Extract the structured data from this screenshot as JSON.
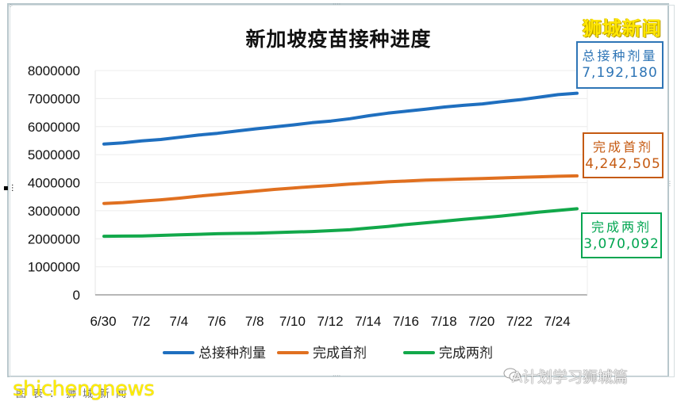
{
  "brand": {
    "name": "狮城新闻"
  },
  "watermarks": {
    "site": "shichengnews",
    "caption": "图表：狮城新闻",
    "wechat_account": "A计划学习狮城篇",
    "wechat_icon": "wechat-icon"
  },
  "callouts": [
    {
      "label": "总接种剂量",
      "value": "7,192,180",
      "color": "#2e75b6"
    },
    {
      "label": "完成首剂",
      "value": "4,242,505",
      "color": "#c55a11"
    },
    {
      "label": "完成两剂",
      "value": "3,070,092",
      "color": "#00a550"
    }
  ],
  "chart_data": {
    "type": "line",
    "title": "新加坡疫苗接种进度",
    "xlabel": "",
    "ylabel": "",
    "ylim": [
      0,
      8000000
    ],
    "yticks": [
      0,
      1000000,
      2000000,
      3000000,
      4000000,
      5000000,
      6000000,
      7000000,
      8000000
    ],
    "ytick_labels": [
      "0",
      "1000000",
      "2000000",
      "3000000",
      "4000000",
      "5000000",
      "6000000",
      "7000000",
      "8000000"
    ],
    "xtick_labels": [
      "6/30",
      "7/2",
      "7/4",
      "7/6",
      "7/8",
      "7/10",
      "7/12",
      "7/14",
      "7/16",
      "7/18",
      "7/20",
      "7/22",
      "7/24"
    ],
    "x": [
      "6/30",
      "7/1",
      "7/2",
      "7/3",
      "7/4",
      "7/5",
      "7/6",
      "7/7",
      "7/8",
      "7/9",
      "7/10",
      "7/11",
      "7/12",
      "7/13",
      "7/14",
      "7/15",
      "7/16",
      "7/17",
      "7/18",
      "7/19",
      "7/20",
      "7/21",
      "7/22",
      "7/23",
      "7/24",
      "7/25"
    ],
    "grid": true,
    "legend_position": "bottom",
    "series": [
      {
        "name": "总接种剂量",
        "color": "#1f6fbf",
        "values": [
          5380000,
          5420000,
          5490000,
          5540000,
          5620000,
          5700000,
          5760000,
          5840000,
          5920000,
          5990000,
          6060000,
          6140000,
          6200000,
          6280000,
          6390000,
          6480000,
          6550000,
          6620000,
          6700000,
          6760000,
          6810000,
          6890000,
          6960000,
          7050000,
          7140000,
          7192180
        ]
      },
      {
        "name": "完成首剂",
        "color": "#e07020",
        "values": [
          3260000,
          3290000,
          3340000,
          3390000,
          3450000,
          3520000,
          3580000,
          3640000,
          3700000,
          3760000,
          3810000,
          3860000,
          3900000,
          3950000,
          3990000,
          4030000,
          4060000,
          4090000,
          4110000,
          4130000,
          4150000,
          4170000,
          4190000,
          4210000,
          4230000,
          4242505
        ]
      },
      {
        "name": "完成两剂",
        "color": "#12a84a",
        "values": [
          2090000,
          2095000,
          2100000,
          2120000,
          2140000,
          2160000,
          2180000,
          2190000,
          2200000,
          2220000,
          2240000,
          2260000,
          2290000,
          2320000,
          2380000,
          2440000,
          2510000,
          2570000,
          2630000,
          2690000,
          2750000,
          2810000,
          2880000,
          2950000,
          3010000,
          3070092
        ]
      }
    ]
  }
}
